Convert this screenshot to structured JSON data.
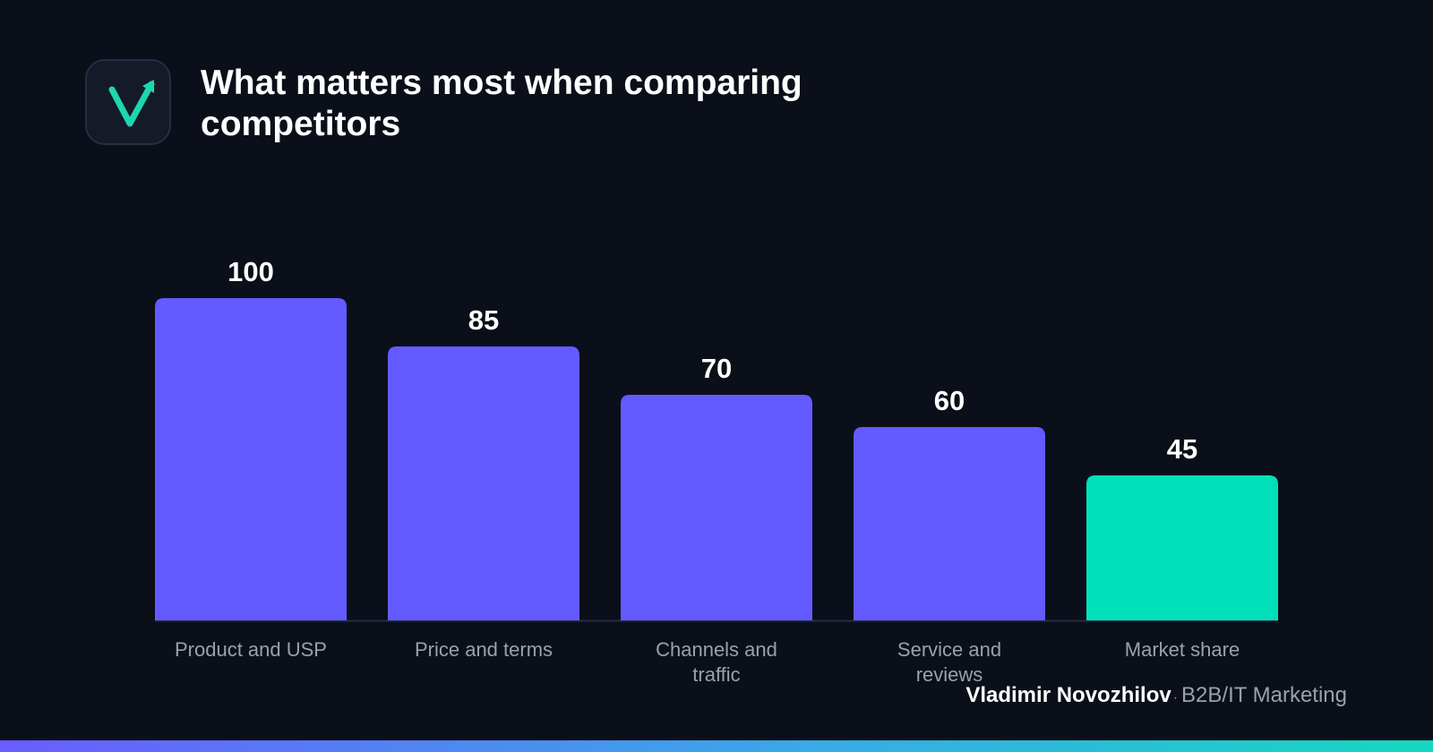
{
  "logo": {
    "icon": "checkmark-arrow-icon",
    "accent_color": "#1ed6b0"
  },
  "title": "What matters most when comparing competitors",
  "chart_data": {
    "type": "bar",
    "categories": [
      "Product and USP",
      "Price and terms",
      "Channels and traffic",
      "Service and reviews",
      "Market share"
    ],
    "category_lines": [
      [
        "Product and USP"
      ],
      [
        "Price and terms"
      ],
      [
        "Channels and",
        "traffic"
      ],
      [
        "Service and",
        "reviews"
      ],
      [
        "Market share"
      ]
    ],
    "values": [
      100,
      85,
      70,
      60,
      45
    ],
    "value_labels": [
      "100",
      "85",
      "70",
      "60",
      "45"
    ],
    "bar_colors": [
      "#635bff",
      "#635bff",
      "#635bff",
      "#635bff",
      "#00e0b8"
    ],
    "ylim": [
      0,
      100
    ],
    "grid": false,
    "legend": false
  },
  "byline": {
    "author": "Vladimir Novozhilov",
    "separator": "·",
    "role": "B2B/IT Marketing"
  },
  "colors": {
    "background": "#0b0f19",
    "bar": "#635bff",
    "highlight": "#00e0b8",
    "axis_line": "#262d45",
    "label_text": "#9aa1ad"
  }
}
